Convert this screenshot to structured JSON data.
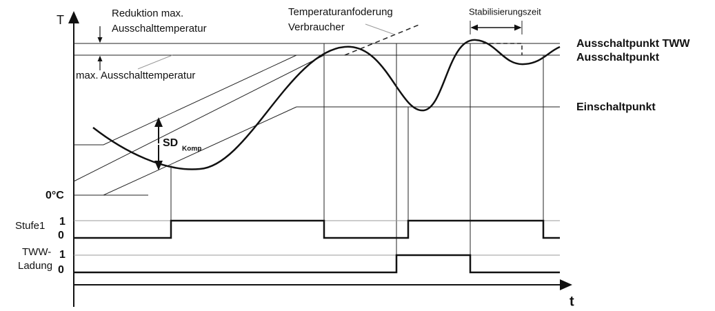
{
  "axes": {
    "y_label": "T",
    "x_label": "t",
    "zero_label": "0°C"
  },
  "annotations": {
    "reduktion": [
      "Reduktion max.",
      "Ausschalttemperatur"
    ],
    "max_temp": "max. Ausschalttemperatur",
    "anforderung": [
      "Temperaturanfoderung",
      "Verbraucher"
    ],
    "stabilisierung": "Stabilisierungszeit",
    "sd": "SD",
    "sd_sub": "Komp"
  },
  "levels": {
    "aus_tww": "Ausschaltpunkt TWW",
    "aus": "Ausschaltpunkt",
    "ein": "Einschaltpunkt"
  },
  "signals": [
    {
      "label": [
        "Stufe1"
      ],
      "high": "1",
      "low": "0"
    },
    {
      "label": [
        "TWW-",
        "Ladung"
      ],
      "high": "1",
      "low": "0"
    }
  ]
}
